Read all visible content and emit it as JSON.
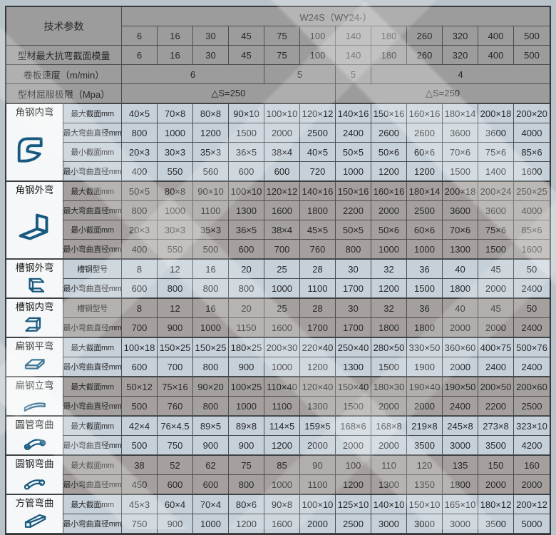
{
  "page": {
    "background": "#b9c3ca"
  },
  "colors": {
    "header_bg": "#9c9c9c",
    "light_section_bg": "#c6d0d8",
    "gray_section_bg": "#a5a09d",
    "icon_cell_bg": "#f5f7f8",
    "grid_line": "#4a4e50",
    "outer_border": "#35383a",
    "icon_stroke": "#17597f",
    "text": "#26282a"
  },
  "header": {
    "param_label": "技术参数",
    "model_label": "W24S（WY24-）",
    "columns": [
      "6",
      "16",
      "30",
      "45",
      "75",
      "100",
      "140",
      "180",
      "260",
      "320",
      "400",
      "500"
    ],
    "param_rows": [
      {
        "label": "型材最大抗弯截面模量",
        "cells": [
          {
            "text": "6",
            "span": 1
          },
          {
            "text": "16",
            "span": 1
          },
          {
            "text": "30",
            "span": 1
          },
          {
            "text": "45",
            "span": 1
          },
          {
            "text": "75",
            "span": 1
          },
          {
            "text": "100",
            "span": 1
          },
          {
            "text": "140",
            "span": 1
          },
          {
            "text": "180",
            "span": 1
          },
          {
            "text": "260",
            "span": 1
          },
          {
            "text": "320",
            "span": 1
          },
          {
            "text": "400",
            "span": 1
          },
          {
            "text": "500",
            "span": 1
          }
        ]
      },
      {
        "label": "卷板速度（m/min）",
        "cells": [
          {
            "text": "6",
            "span": 4
          },
          {
            "text": "5",
            "span": 2
          },
          {
            "text": "5",
            "span": 1
          },
          {
            "text": "4",
            "span": 5
          }
        ]
      },
      {
        "label": "型材屈服极限（Mpa）",
        "cells": [
          {
            "text": "△S=250",
            "span": 6
          },
          {
            "text": "△S=250",
            "span": 6
          }
        ]
      }
    ]
  },
  "sections": [
    {
      "key": "angle-steel-inner-bend",
      "name": "角钢内弯",
      "icon": "angle-steel-inner-bend-icon",
      "tone": "light",
      "rows": [
        {
          "label": "最大截面mm",
          "values": [
            "40×5",
            "70×8",
            "80×8",
            "90×10",
            "100×10",
            "120×12",
            "140×16",
            "150×16",
            "160×16",
            "180×14",
            "200×18",
            "200×20"
          ]
        },
        {
          "label": "最大弯曲直径mm",
          "values": [
            "800",
            "1000",
            "1200",
            "1500",
            "2000",
            "2500",
            "2400",
            "2600",
            "2600",
            "3600",
            "3600",
            "4000"
          ]
        },
        {
          "label": "最小截面mm",
          "values": [
            "20×3",
            "30×3",
            "35×3",
            "36×5",
            "38×4",
            "40×5",
            "50×5",
            "50×6",
            "60×6",
            "70×6",
            "75×6",
            "85×6"
          ]
        },
        {
          "label": "最小弯曲直径mm",
          "values": [
            "400",
            "550",
            "560",
            "600",
            "600",
            "720",
            "1000",
            "1200",
            "1200",
            "1500",
            "1400",
            "1600"
          ]
        }
      ]
    },
    {
      "key": "angle-steel-outer-bend",
      "name": "角钢外弯",
      "icon": "angle-steel-outer-bend-icon",
      "tone": "gray",
      "rows": [
        {
          "label": "最大截面mm",
          "values": [
            "50×5",
            "80×8",
            "90×10",
            "100×10",
            "120×12",
            "140×16",
            "150×16",
            "160×16",
            "180×14",
            "200×18",
            "200×24",
            "250×25"
          ]
        },
        {
          "label": "最大弯曲直径mm",
          "values": [
            "800",
            "1000",
            "1100",
            "1300",
            "1600",
            "1800",
            "2200",
            "2000",
            "2500",
            "3600",
            "3600",
            "4000"
          ]
        },
        {
          "label": "最小截面mm",
          "values": [
            "20×3",
            "30×3",
            "35×3",
            "36×5",
            "38×4",
            "45×5",
            "50×5",
            "50×6",
            "60×6",
            "70×6",
            "75×6",
            "85×6"
          ]
        },
        {
          "label": "最小弯曲直径mm",
          "values": [
            "400",
            "550",
            "500",
            "600",
            "700",
            "760",
            "800",
            "1000",
            "1000",
            "1300",
            "1500",
            "1600"
          ]
        }
      ]
    },
    {
      "key": "channel-steel-outer-bend",
      "name": "槽钢外弯",
      "icon": "channel-steel-outer-bend-icon",
      "tone": "light",
      "rows": [
        {
          "label": "槽钢型号",
          "values": [
            "8",
            "12",
            "16",
            "20",
            "25",
            "28",
            "30",
            "32",
            "36",
            "40",
            "45",
            "50"
          ]
        },
        {
          "label": "最小弯曲直径mm",
          "values": [
            "600",
            "800",
            "800",
            "800",
            "1000",
            "1100",
            "1700",
            "1200",
            "1500",
            "1800",
            "2000",
            "2400"
          ]
        }
      ]
    },
    {
      "key": "channel-steel-inner-bend",
      "name": "槽钢内弯",
      "icon": "channel-steel-inner-bend-icon",
      "tone": "gray",
      "rows": [
        {
          "label": "槽钢型号",
          "values": [
            "8",
            "12",
            "16",
            "20",
            "25",
            "28",
            "30",
            "32",
            "36",
            "40",
            "45",
            "50"
          ]
        },
        {
          "label": "最小弯曲直径mm",
          "values": [
            "700",
            "900",
            "1000",
            "1150",
            "1600",
            "1700",
            "1700",
            "1800",
            "1800",
            "2000",
            "2000",
            "2400"
          ]
        }
      ]
    },
    {
      "key": "flat-steel-flat-bend",
      "name": "扁钢平弯",
      "icon": "flat-steel-flat-bend-icon",
      "tone": "light",
      "rows": [
        {
          "label": "最大截面mm",
          "values": [
            "100×18",
            "150×25",
            "150×25",
            "180×25",
            "200×30",
            "220×40",
            "250×40",
            "280×50",
            "330×50",
            "360×60",
            "400×75",
            "500×76"
          ]
        },
        {
          "label": "最小弯曲直径mm",
          "values": [
            "600",
            "700",
            "800",
            "900",
            "1000",
            "1200",
            "1300",
            "1500",
            "1900",
            "2000",
            "2400",
            "2400"
          ]
        }
      ]
    },
    {
      "key": "flat-steel-edge-bend",
      "name": "扁钢立弯",
      "icon": "flat-steel-edge-bend-icon",
      "tone": "gray",
      "rows": [
        {
          "label": "最大截面mm",
          "values": [
            "50×12",
            "75×16",
            "90×20",
            "100×25",
            "110×40",
            "120×40",
            "150×40",
            "180×30",
            "190×40",
            "190×50",
            "200×50",
            "200×60"
          ]
        },
        {
          "label": "最小弯曲直径mm",
          "values": [
            "500",
            "760",
            "800",
            "1000",
            "1100",
            "1300",
            "1500",
            "2000",
            "2000",
            "2400",
            "2200",
            "2500"
          ]
        }
      ]
    },
    {
      "key": "round-tube-bend",
      "name": "圆管弯曲",
      "icon": "round-tube-bend-icon",
      "tone": "light",
      "rows": [
        {
          "label": "最大截面mm",
          "values": [
            "42×4",
            "76×4.5",
            "89×5",
            "89×8",
            "114×5",
            "159×5",
            "168×6",
            "168×8",
            "219×8",
            "245×8",
            "273×8",
            "323×10"
          ]
        },
        {
          "label": "最小弯曲直径mm",
          "values": [
            "500",
            "750",
            "900",
            "900",
            "1200",
            "2000",
            "2000",
            "2000",
            "3500",
            "3000",
            "3500",
            "4200"
          ]
        }
      ]
    },
    {
      "key": "round-bar-bend",
      "name": "圆钢弯曲",
      "icon": "round-bar-bend-icon",
      "tone": "gray",
      "rows": [
        {
          "label": "最大截面mm",
          "values": [
            "38",
            "52",
            "62",
            "75",
            "85",
            "90",
            "100",
            "110",
            "120",
            "135",
            "150",
            "160"
          ]
        },
        {
          "label": "最小弯曲直径mm",
          "values": [
            "450",
            "600",
            "600",
            "800",
            "1000",
            "1100",
            "1200",
            "1300",
            "1350",
            "1800",
            "2000",
            "2000"
          ]
        }
      ]
    },
    {
      "key": "square-tube-bend",
      "name": "方管弯曲",
      "icon": "square-tube-bend-icon",
      "tone": "light",
      "rows": [
        {
          "label": "最大截面mm",
          "values": [
            "45×3",
            "60×4",
            "70×4",
            "80×6",
            "90×8",
            "100×10",
            "125×10",
            "140×10",
            "150×10",
            "165×10",
            "180×12",
            "200×12"
          ]
        },
        {
          "label": "最小弯曲直径mm",
          "values": [
            "750",
            "900",
            "1000",
            "1200",
            "1600",
            "2000",
            "2500",
            "3000",
            "3000",
            "3000",
            "3500",
            "5000"
          ]
        }
      ]
    }
  ]
}
